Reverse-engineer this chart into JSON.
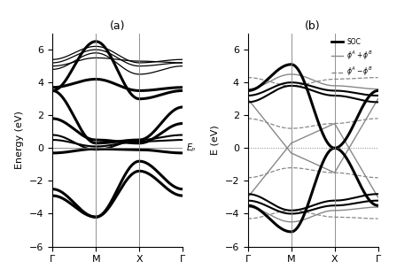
{
  "title_a": "(a)",
  "title_b": "(b)",
  "ylabel_a": "Energy (eV)",
  "ylabel_b": "E (eV)",
  "ylim": [
    -6,
    7
  ],
  "yticks": [
    -6,
    -4,
    -2,
    0,
    2,
    4,
    6
  ],
  "xtick_labels": [
    "Γ",
    "M",
    "X",
    "Γ"
  ],
  "ef_label": "Eₚ",
  "n_points": 400
}
